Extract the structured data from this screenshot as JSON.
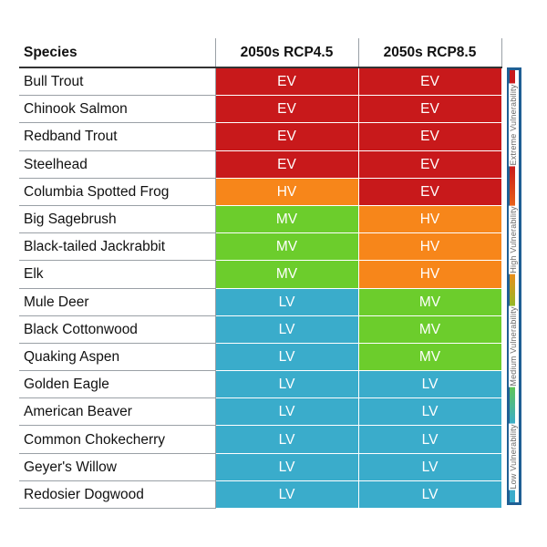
{
  "table": {
    "headers": [
      "Species",
      "2050s RCP4.5",
      "2050s RCP8.5"
    ],
    "rows": [
      {
        "species": "Bull Trout",
        "rcp45": "EV",
        "rcp85": "EV"
      },
      {
        "species": "Chinook Salmon",
        "rcp45": "EV",
        "rcp85": "EV"
      },
      {
        "species": "Redband Trout",
        "rcp45": "EV",
        "rcp85": "EV"
      },
      {
        "species": "Steelhead",
        "rcp45": "EV",
        "rcp85": "EV"
      },
      {
        "species": "Columbia Spotted Frog",
        "rcp45": "HV",
        "rcp85": "EV"
      },
      {
        "species": "Big Sagebrush",
        "rcp45": "MV",
        "rcp85": "HV"
      },
      {
        "species": "Black-tailed Jackrabbit",
        "rcp45": "MV",
        "rcp85": "HV"
      },
      {
        "species": "Elk",
        "rcp45": "MV",
        "rcp85": "HV"
      },
      {
        "species": "Mule Deer",
        "rcp45": "LV",
        "rcp85": "MV"
      },
      {
        "species": "Black Cottonwood",
        "rcp45": "LV",
        "rcp85": "MV"
      },
      {
        "species": "Quaking Aspen",
        "rcp45": "LV",
        "rcp85": "MV"
      },
      {
        "species": "Golden Eagle",
        "rcp45": "LV",
        "rcp85": "LV"
      },
      {
        "species": "American Beaver",
        "rcp45": "LV",
        "rcp85": "LV"
      },
      {
        "species": "Common Chokecherry",
        "rcp45": "LV",
        "rcp85": "LV"
      },
      {
        "species": "Geyer's Willow",
        "rcp45": "LV",
        "rcp85": "LV"
      },
      {
        "species": "Redosier Dogwood",
        "rcp45": "LV",
        "rcp85": "LV"
      }
    ]
  },
  "rating_colors": {
    "EV": "#c8191b",
    "HV": "#f7861a",
    "MV": "#6ccd2c",
    "LV": "#3aaccb"
  },
  "legend": {
    "labels": [
      "Extreme Vulnerability",
      "High Vulnerability",
      "Medium Vulnerability",
      "Low Vulnerability"
    ],
    "frame_color": "#1f5f94",
    "gradient_colors": [
      "#c8191b",
      "#f7861a",
      "#6ccd2c",
      "#3aaccb"
    ]
  }
}
